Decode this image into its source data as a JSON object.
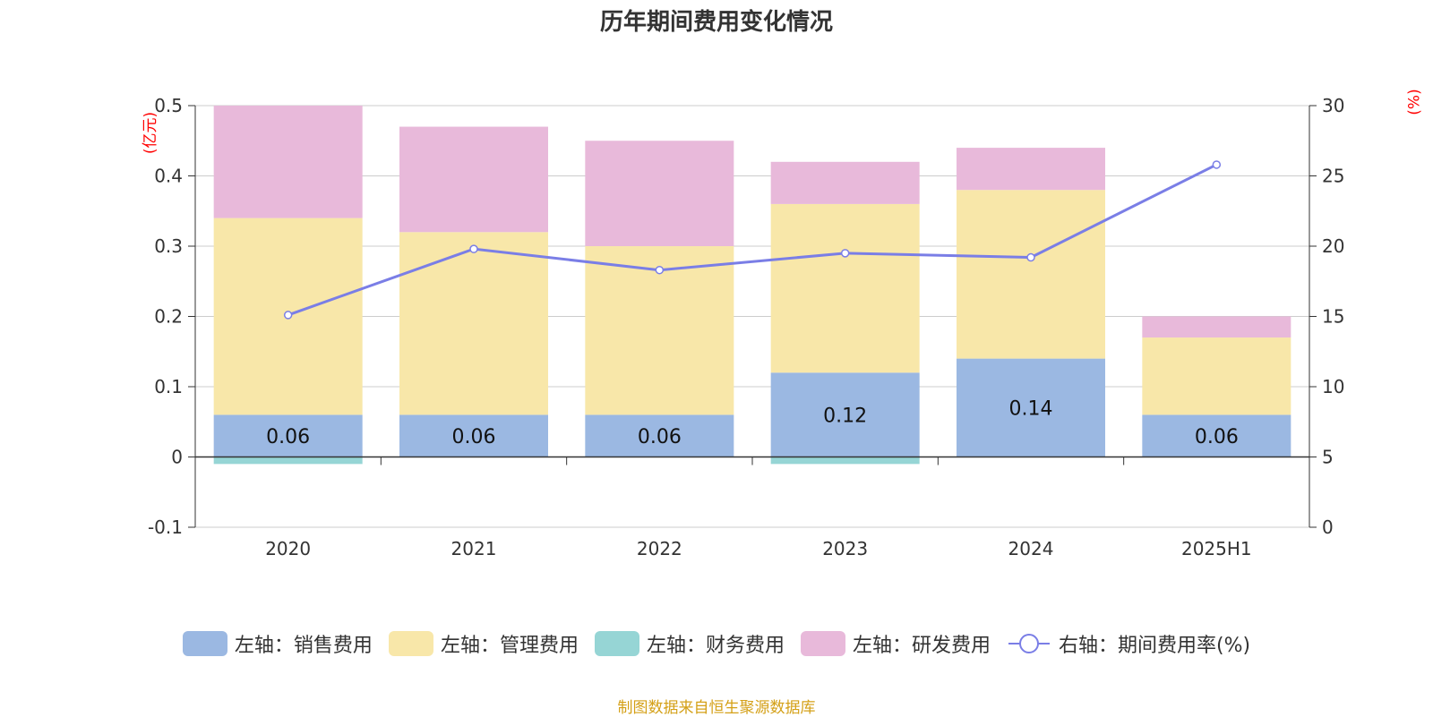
{
  "chart_data": {
    "type": "bar",
    "title": "历年期间费用变化情况",
    "categories": [
      "2020",
      "2021",
      "2022",
      "2023",
      "2024",
      "2025H1"
    ],
    "left_axis": {
      "unit": "(亿元)",
      "ylim": [
        -0.1,
        0.5
      ],
      "ticks": [
        "-0.1",
        "0",
        "0.1",
        "0.2",
        "0.3",
        "0.4",
        "0.5"
      ],
      "tick_values": [
        -0.1,
        0,
        0.1,
        0.2,
        0.3,
        0.4,
        0.5
      ]
    },
    "right_axis": {
      "unit": "(%)",
      "ylim": [
        0,
        30
      ],
      "ticks": [
        "0",
        "5",
        "10",
        "15",
        "20",
        "25",
        "30"
      ],
      "tick_values": [
        0,
        5,
        10,
        15,
        20,
        25,
        30
      ]
    },
    "grid": true,
    "legend_position": "bottom",
    "series": [
      {
        "name": "左轴：销售费用",
        "type": "bar",
        "axis": "left",
        "color": "#9bb8e2",
        "values": [
          0.06,
          0.06,
          0.06,
          0.12,
          0.14,
          0.06
        ],
        "labels": [
          "0.06",
          "0.06",
          "0.06",
          "0.12",
          "0.14",
          "0.06"
        ]
      },
      {
        "name": "左轴：管理费用",
        "type": "bar",
        "axis": "left",
        "color": "#f8e7a9",
        "values": [
          0.28,
          0.26,
          0.24,
          0.24,
          0.24,
          0.11
        ]
      },
      {
        "name": "左轴：财务费用",
        "type": "bar",
        "axis": "left",
        "color": "#96d5d5",
        "values": [
          -0.01,
          0.0,
          0.0,
          -0.01,
          0.0,
          0.0
        ]
      },
      {
        "name": "左轴：研发费用",
        "type": "bar",
        "axis": "left",
        "color": "#e8b9da",
        "values": [
          0.16,
          0.15,
          0.15,
          0.06,
          0.06,
          0.03
        ]
      },
      {
        "name": "右轴：期间费用率(%)",
        "type": "line",
        "axis": "right",
        "color": "#7a7ee6",
        "values": [
          15.1,
          19.8,
          18.3,
          19.5,
          19.2,
          25.8
        ]
      }
    ]
  },
  "footer": {
    "source": "制图数据来自恒生聚源数据库"
  }
}
